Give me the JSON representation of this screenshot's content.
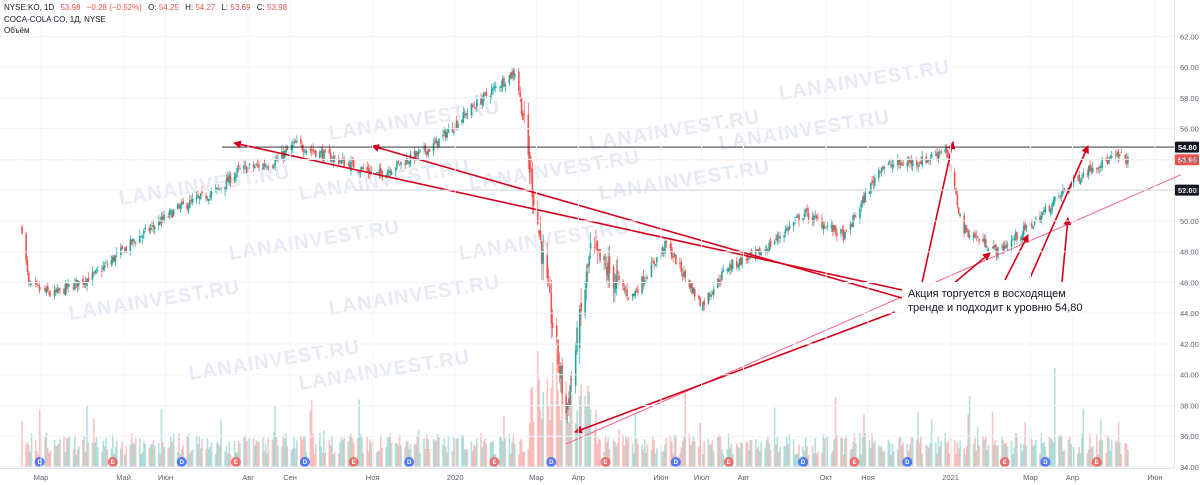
{
  "header": {
    "symbol": "NYSE:KO, 1D",
    "last": "53.98",
    "change": "−0.28 (−0.52%)",
    "o_label": "O:",
    "o": "54.25",
    "h_label": "H:",
    "h": "54.27",
    "l_label": "L:",
    "l": "53.69",
    "c_label": "C:",
    "c": "53.98",
    "company": "COCA-COLA CO, 1Д, NYSE",
    "volume_label": "Объём"
  },
  "colors": {
    "up": "#26a69a",
    "down": "#ef5350",
    "annotation": "#d5001c",
    "level_line": "#131722",
    "trend_line": "#f0608a",
    "earnings": "#ef5350",
    "dividend": "#2962ff"
  },
  "watermark": "LANAINVEST.RU",
  "annotation": {
    "line1": "Акция торгуется в восходящем",
    "line2": "тренде и подходит к уровню 54,80"
  },
  "chart_data": {
    "type": "candlestick",
    "symbol": "NYSE:KO",
    "interval": "1D",
    "y_range": [
      34,
      63
    ],
    "y_ticks": [
      "62.00",
      "60.00",
      "58.00",
      "56.00",
      "54.00",
      "52.00",
      "50.00",
      "48.00",
      "46.00",
      "44.00",
      "42.00",
      "40.00",
      "38.00",
      "36.00",
      "34.00"
    ],
    "x_ticks": [
      {
        "label": "Мар",
        "date": "2019-03-01"
      },
      {
        "label": "Май",
        "date": "2019-05-01"
      },
      {
        "label": "Июн",
        "date": "2019-06-01"
      },
      {
        "label": "Авг",
        "date": "2019-08-01"
      },
      {
        "label": "Сен",
        "date": "2019-09-01"
      },
      {
        "label": "Ноя",
        "date": "2019-11-01"
      },
      {
        "label": "2020",
        "date": "2020-01-01"
      },
      {
        "label": "Мар",
        "date": "2020-03-01"
      },
      {
        "label": "Апр",
        "date": "2020-04-01"
      },
      {
        "label": "Июн",
        "date": "2020-06-01"
      },
      {
        "label": "Июл",
        "date": "2020-07-01"
      },
      {
        "label": "Авг",
        "date": "2020-08-01"
      },
      {
        "label": "Окт",
        "date": "2020-10-01"
      },
      {
        "label": "Ноя",
        "date": "2020-11-01"
      },
      {
        "label": "2021",
        "date": "2021-01-01"
      },
      {
        "label": "Мар",
        "date": "2021-03-01"
      },
      {
        "label": "Апр",
        "date": "2021-04-01"
      },
      {
        "label": "Июн",
        "date": "2021-06-01"
      }
    ],
    "price_path": [
      {
        "date": "2019-02-15",
        "close": 49.5
      },
      {
        "date": "2019-02-20",
        "close": 45.8
      },
      {
        "date": "2019-03-10",
        "close": 45.2
      },
      {
        "date": "2019-04-10",
        "close": 46.5
      },
      {
        "date": "2019-05-10",
        "close": 48.8
      },
      {
        "date": "2019-06-10",
        "close": 50.8
      },
      {
        "date": "2019-07-10",
        "close": 52.0
      },
      {
        "date": "2019-07-25",
        "close": 53.3
      },
      {
        "date": "2019-08-20",
        "close": 53.8
      },
      {
        "date": "2019-09-05",
        "close": 55.0
      },
      {
        "date": "2019-10-05",
        "close": 54.0
      },
      {
        "date": "2019-11-05",
        "close": 53.0
      },
      {
        "date": "2019-12-15",
        "close": 54.8
      },
      {
        "date": "2020-01-15",
        "close": 57.5
      },
      {
        "date": "2020-02-15",
        "close": 59.8
      },
      {
        "date": "2020-02-25",
        "close": 53.5
      },
      {
        "date": "2020-03-10",
        "close": 45.0
      },
      {
        "date": "2020-03-23",
        "close": 37.5
      },
      {
        "date": "2020-04-10",
        "close": 48.0
      },
      {
        "date": "2020-05-10",
        "close": 45.0
      },
      {
        "date": "2020-06-05",
        "close": 48.5
      },
      {
        "date": "2020-07-01",
        "close": 44.5
      },
      {
        "date": "2020-07-20",
        "close": 47.0
      },
      {
        "date": "2020-08-15",
        "close": 48.0
      },
      {
        "date": "2020-09-15",
        "close": 50.5
      },
      {
        "date": "2020-10-15",
        "close": 49.0
      },
      {
        "date": "2020-11-10",
        "close": 53.5
      },
      {
        "date": "2020-12-15",
        "close": 54.0
      },
      {
        "date": "2020-12-28",
        "close": 54.8
      },
      {
        "date": "2021-01-10",
        "close": 49.5
      },
      {
        "date": "2021-02-05",
        "close": 48.0
      },
      {
        "date": "2021-03-05",
        "close": 50.0
      },
      {
        "date": "2021-04-01",
        "close": 52.5
      },
      {
        "date": "2021-04-15",
        "close": 53.5
      },
      {
        "date": "2021-05-05",
        "close": 54.2
      },
      {
        "date": "2021-05-12",
        "close": 53.98
      }
    ],
    "volume_spikes": [
      {
        "date": "2020-03-13",
        "level": 0.95
      },
      {
        "date": "2020-03-20",
        "level": 0.8
      },
      {
        "date": "2020-06-19",
        "level": 0.7
      },
      {
        "date": "2021-03-19",
        "level": 0.9
      }
    ],
    "horizontal_levels": [
      {
        "price": 54.8,
        "label": "54.80"
      },
      {
        "price": 52.0,
        "label": "52.00"
      }
    ],
    "last_price": {
      "price": 53.98,
      "label": "53.98"
    },
    "trend_line": {
      "from": {
        "date": "2020-03-23",
        "price": 35.5
      },
      "to": {
        "date": "2021-06-20",
        "price": 53.0
      }
    },
    "events": [
      {
        "date": "2019-02-28",
        "type": "D"
      },
      {
        "date": "2019-04-23",
        "type": "E"
      },
      {
        "date": "2019-06-13",
        "type": "D"
      },
      {
        "date": "2019-07-23",
        "type": "E"
      },
      {
        "date": "2019-09-12",
        "type": "D"
      },
      {
        "date": "2019-10-18",
        "type": "E"
      },
      {
        "date": "2019-11-28",
        "type": "D"
      },
      {
        "date": "2020-01-30",
        "type": "E"
      },
      {
        "date": "2020-03-12",
        "type": "D"
      },
      {
        "date": "2020-04-21",
        "type": "E"
      },
      {
        "date": "2020-06-12",
        "type": "D"
      },
      {
        "date": "2020-07-21",
        "type": "E"
      },
      {
        "date": "2020-09-14",
        "type": "D"
      },
      {
        "date": "2020-10-22",
        "type": "E"
      },
      {
        "date": "2020-11-30",
        "type": "D"
      },
      {
        "date": "2021-02-10",
        "type": "E"
      },
      {
        "date": "2021-03-12",
        "type": "D"
      },
      {
        "date": "2021-04-19",
        "type": "E"
      }
    ]
  }
}
